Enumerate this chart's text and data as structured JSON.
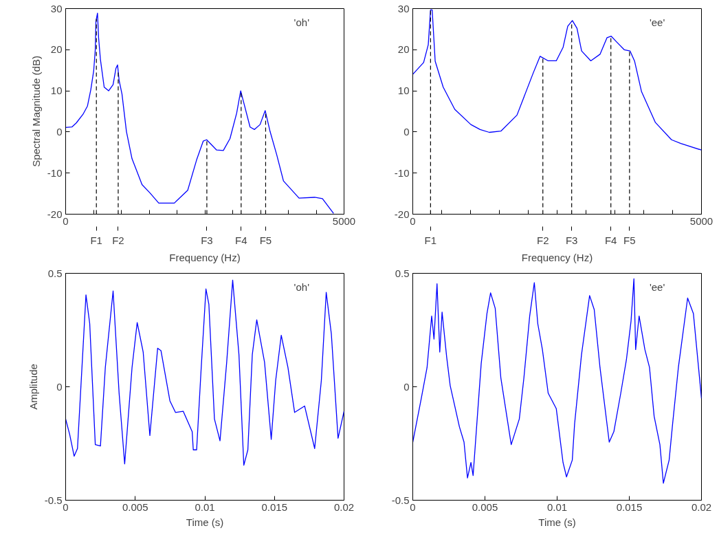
{
  "chart_data": [
    {
      "type": "line",
      "xlabel": "Frequency (Hz)",
      "ylabel": "Spectral Magnitude (dB)",
      "annotations": [
        "'oh'"
      ],
      "xlim": [
        0,
        5000
      ],
      "ylim": [
        -20,
        30
      ],
      "xticks": [
        0,
        {
          "value": 500,
          "label": null
        },
        {
          "value": 1000,
          "label": null
        },
        {
          "value": 1500,
          "label": null
        },
        {
          "value": 2000,
          "label": null
        },
        {
          "value": 2500,
          "label": null
        },
        {
          "value": 3000,
          "label": null
        },
        {
          "value": 3500,
          "label": null
        },
        {
          "value": 4000,
          "label": null
        },
        {
          "value": 4500,
          "label": null
        },
        5000
      ],
      "yticks": [
        -20,
        -10,
        0,
        10,
        20,
        30
      ],
      "ref_lines": [
        {
          "axis": "x",
          "value": 552,
          "label": "F1",
          "line_style": "dashed",
          "color": "#000000"
        },
        {
          "axis": "x",
          "value": 944,
          "label": "F2",
          "line_style": "dashed",
          "color": "#000000"
        },
        {
          "axis": "x",
          "value": 2536,
          "label": "F3",
          "line_style": "dashed",
          "color": "#000000"
        },
        {
          "axis": "x",
          "value": 3152,
          "label": "F4",
          "line_style": "dashed",
          "color": "#000000"
        },
        {
          "axis": "x",
          "value": 3592,
          "label": "F5",
          "line_style": "dashed",
          "color": "#000000"
        }
      ],
      "series": [
        {
          "color": "#0000ff",
          "x": [
            0,
            112,
            192,
            312,
            392,
            452,
            504,
            532,
            544,
            572,
            592,
            624,
            692,
            772,
            852,
            904,
            932,
            960,
            1012,
            1092,
            1192,
            1372,
            1512,
            1672,
            1952,
            2192,
            2352,
            2472,
            2532,
            2712,
            2832,
            2952,
            3072,
            3144,
            3192,
            3312,
            3392,
            3492,
            3584,
            3672,
            3792,
            3912,
            4192,
            4472,
            4612,
            4812
          ],
          "values": [
            1.1,
            1.2,
            2.2,
            4.3,
            6.3,
            10.3,
            14.9,
            20.0,
            26.9,
            28.9,
            22.9,
            17.7,
            10.9,
            10.0,
            11.5,
            15.5,
            16.3,
            12.6,
            9.2,
            0.1,
            -6.5,
            -12.8,
            -14.8,
            -17.3,
            -17.3,
            -14.2,
            -6.8,
            -2.2,
            -1.9,
            -4.4,
            -4.5,
            -1.6,
            4.6,
            10.0,
            7.5,
            1.2,
            0.6,
            1.8,
            5.2,
            0.1,
            -5.6,
            -11.9,
            -16.1,
            -15.9,
            -16.2,
            -19.8
          ]
        }
      ]
    },
    {
      "type": "line",
      "xlabel": "Frequency (Hz)",
      "annotations": [
        "'ee'"
      ],
      "xlim": [
        0,
        5000
      ],
      "ylim": [
        -20,
        30
      ],
      "xticks": [
        0,
        {
          "value": 500,
          "label": null
        },
        {
          "value": 1000,
          "label": null
        },
        {
          "value": 1500,
          "label": null
        },
        {
          "value": 2000,
          "label": null
        },
        {
          "value": 2500,
          "label": null
        },
        {
          "value": 3000,
          "label": null
        },
        {
          "value": 3500,
          "label": null
        },
        {
          "value": 4000,
          "label": null
        },
        {
          "value": 4500,
          "label": null
        },
        5000
      ],
      "yticks": [
        -20,
        -10,
        0,
        10,
        20,
        30
      ],
      "ref_lines": [
        {
          "axis": "x",
          "value": 308,
          "label": "F1",
          "line_style": "dashed",
          "color": "#000000"
        },
        {
          "axis": "x",
          "value": 2253,
          "label": "F2",
          "line_style": "dashed",
          "color": "#000000"
        },
        {
          "axis": "x",
          "value": 2752,
          "label": "F3",
          "line_style": "dashed",
          "color": "#000000"
        },
        {
          "axis": "x",
          "value": 3431,
          "label": "F4",
          "line_style": "dashed",
          "color": "#000000"
        },
        {
          "axis": "x",
          "value": 3754,
          "label": "F5",
          "line_style": "dashed",
          "color": "#000000"
        }
      ],
      "series": [
        {
          "color": "#0000ff",
          "x": [
            0,
            188,
            268,
            308,
            336,
            388,
            527,
            727,
            1006,
            1166,
            1326,
            1526,
            1805,
            2085,
            2205,
            2345,
            2485,
            2604,
            2684,
            2764,
            2844,
            2924,
            3083,
            3243,
            3363,
            3435,
            3523,
            3662,
            3762,
            3842,
            3962,
            4202,
            4481,
            4641,
            4999
          ],
          "values": [
            14.0,
            16.9,
            21.2,
            29.7,
            29.7,
            17.2,
            10.9,
            5.5,
            1.8,
            0.6,
            -0.1,
            0.2,
            4.1,
            14.3,
            18.4,
            17.3,
            17.3,
            20.6,
            25.7,
            27.1,
            25.2,
            19.7,
            17.3,
            18.9,
            22.9,
            23.3,
            22.0,
            20.0,
            19.7,
            17.2,
            9.8,
            2.3,
            -1.9,
            -2.8,
            -4.4
          ]
        }
      ]
    },
    {
      "type": "line",
      "xlabel": "Time (s)",
      "ylabel": "Amplitude",
      "annotations": [
        "'oh'"
      ],
      "xlim": [
        0,
        0.02
      ],
      "ylim": [
        -0.5,
        0.5
      ],
      "xticks": [
        0,
        0.005,
        0.01,
        0.015,
        0.02
      ],
      "yticks": [
        -0.5,
        0,
        0.5
      ],
      "series": [
        {
          "color": "#0000ff",
          "x": [
            0,
            0.00029,
            0.00061,
            0.00085,
            0.00109,
            0.00146,
            0.00173,
            0.00213,
            0.0025,
            0.00285,
            0.00341,
            0.00384,
            0.00424,
            0.00477,
            0.00514,
            0.00557,
            0.00605,
            0.00661,
            0.00685,
            0.00749,
            0.00789,
            0.00845,
            0.00909,
            0.00917,
            0.00941,
            0.00973,
            0.01008,
            0.01029,
            0.01069,
            0.01109,
            0.01157,
            0.012,
            0.01245,
            0.0128,
            0.01309,
            0.01341,
            0.01373,
            0.01429,
            0.01477,
            0.01509,
            0.01549,
            0.01597,
            0.01645,
            0.01717,
            0.01789,
            0.01837,
            0.01872,
            0.01909,
            0.01957,
            0.02
          ],
          "values": [
            -0.142,
            -0.21,
            -0.306,
            -0.272,
            -0.006,
            0.405,
            0.278,
            -0.255,
            -0.261,
            0.085,
            0.422,
            -0.028,
            -0.34,
            0.085,
            0.283,
            0.153,
            -0.215,
            0.17,
            0.159,
            -0.062,
            -0.113,
            -0.108,
            -0.198,
            -0.278,
            -0.278,
            0.074,
            0.431,
            0.363,
            -0.142,
            -0.238,
            0.108,
            0.47,
            0.142,
            -0.346,
            -0.278,
            0.142,
            0.295,
            0.108,
            -0.232,
            0.028,
            0.227,
            0.085,
            -0.113,
            -0.085,
            -0.272,
            0.028,
            0.416,
            0.232,
            -0.227,
            -0.108
          ]
        }
      ]
    },
    {
      "type": "line",
      "xlabel": "Time (s)",
      "annotations": [
        "'ee'"
      ],
      "xlim": [
        0,
        0.02
      ],
      "ylim": [
        -0.5,
        0.5
      ],
      "xticks": [
        0,
        0.005,
        0.01,
        0.015,
        0.02
      ],
      "yticks": [
        -0.5,
        0,
        0.5
      ],
      "series": [
        {
          "color": "#0000ff",
          "x": [
            0,
            0.00059,
            0.00099,
            0.00131,
            0.00147,
            0.00168,
            0.00187,
            0.00203,
            0.00235,
            0.00259,
            0.00291,
            0.00323,
            0.00355,
            0.00379,
            0.00403,
            0.00418,
            0.00443,
            0.00474,
            0.00514,
            0.00539,
            0.00571,
            0.0061,
            0.00682,
            0.00738,
            0.0077,
            0.0081,
            0.00842,
            0.00866,
            0.00898,
            0.00938,
            0.00994,
            0.01041,
            0.01065,
            0.01105,
            0.01121,
            0.01169,
            0.01225,
            0.01257,
            0.01297,
            0.01361,
            0.01393,
            0.01441,
            0.0148,
            0.01512,
            0.01532,
            0.01544,
            0.01568,
            0.01608,
            0.0164,
            0.01672,
            0.01712,
            0.01736,
            0.01776,
            0.018,
            0.0184,
            0.01904,
            0.01944,
            0.02
          ],
          "values": [
            -0.244,
            -0.051,
            0.085,
            0.312,
            0.21,
            0.454,
            0.153,
            0.329,
            0.13,
            0.006,
            -0.085,
            -0.176,
            -0.244,
            -0.402,
            -0.334,
            -0.391,
            -0.17,
            0.102,
            0.323,
            0.414,
            0.346,
            0.04,
            -0.255,
            -0.142,
            0.04,
            0.312,
            0.459,
            0.278,
            0.164,
            -0.028,
            -0.096,
            -0.334,
            -0.397,
            -0.323,
            -0.164,
            0.142,
            0.402,
            0.34,
            0.085,
            -0.244,
            -0.198,
            -0.028,
            0.119,
            0.289,
            0.476,
            0.164,
            0.312,
            0.164,
            0.085,
            -0.13,
            -0.255,
            -0.425,
            -0.323,
            -0.164,
            0.085,
            0.391,
            0.323,
            -0.051
          ]
        }
      ]
    }
  ]
}
